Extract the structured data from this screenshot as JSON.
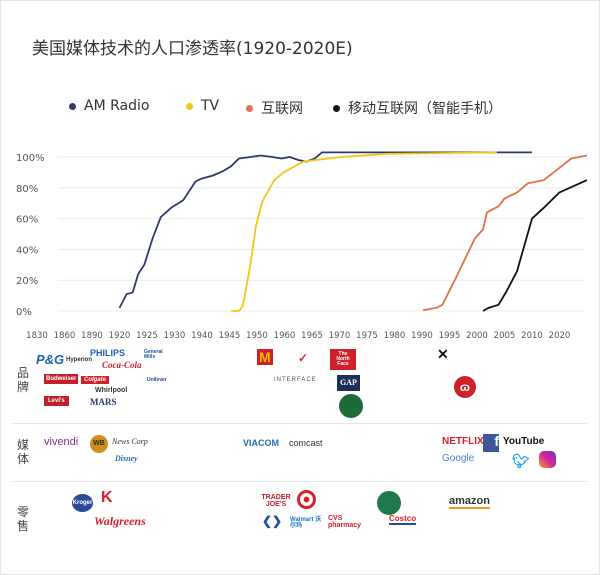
{
  "title": "美国媒体技术的人口渗透率(1920-2020E)",
  "chart_data": {
    "type": "line",
    "title": "美国媒体技术的人口渗透率(1920-2020E)",
    "xlabel": "",
    "ylabel": "",
    "x_ticks": [
      1830,
      1860,
      1890,
      1920,
      1925,
      1930,
      1940,
      1945,
      1950,
      1960,
      1965,
      1970,
      1975,
      1980,
      1990,
      1995,
      2000,
      2005,
      2010,
      2020
    ],
    "y_ticks": [
      "0%",
      "20%",
      "40%",
      "60%",
      "80%",
      "100%"
    ],
    "ylim": [
      0,
      100
    ],
    "grid": "horizontal",
    "legend": "top",
    "series": [
      {
        "name": "AM Radio",
        "color": "#2e3a6e",
        "points": [
          [
            1920,
            2
          ],
          [
            1921.3,
            11
          ],
          [
            1922.4,
            12
          ],
          [
            1923.4,
            24
          ],
          [
            1924.5,
            30
          ],
          [
            1926,
            47
          ],
          [
            1927.5,
            61
          ],
          [
            1929.4,
            67
          ],
          [
            1933.2,
            72
          ],
          [
            1937.6,
            84
          ],
          [
            1939.9,
            86
          ],
          [
            1942,
            88
          ],
          [
            1943.9,
            91
          ],
          [
            1945.3,
            94
          ],
          [
            1946.7,
            99
          ],
          [
            1948.8,
            100
          ],
          [
            1951.3,
            101
          ],
          [
            1955.6,
            100
          ],
          [
            1958.9,
            99
          ],
          [
            1960.9,
            100
          ],
          [
            1962.6,
            98
          ],
          [
            1964,
            97
          ],
          [
            1965.5,
            99
          ],
          [
            1966.8,
            103
          ],
          [
            2010,
            103
          ]
        ]
      },
      {
        "name": "TV",
        "color": "#f2c811",
        "points": [
          [
            1945.3,
            0
          ],
          [
            1946.7,
            0
          ],
          [
            1947.4,
            3
          ],
          [
            1948.8,
            30
          ],
          [
            1949.8,
            55
          ],
          [
            1951.9,
            71
          ],
          [
            1956.3,
            85
          ],
          [
            1959.6,
            90
          ],
          [
            1961.9,
            94
          ],
          [
            1963.4,
            97
          ],
          [
            1965.5,
            98
          ],
          [
            1970.3,
            100
          ],
          [
            1978.5,
            102
          ],
          [
            2003.6,
            103
          ]
        ]
      },
      {
        "name": "互联网",
        "color": "#e0714b",
        "points": [
          [
            1990.2,
            0.5
          ],
          [
            1992.6,
            2
          ],
          [
            1993.7,
            4
          ],
          [
            1996.1,
            21
          ],
          [
            1999.6,
            47
          ],
          [
            2001.1,
            53
          ],
          [
            2001.8,
            64
          ],
          [
            2003.9,
            68
          ],
          [
            2005,
            73
          ],
          [
            2007.3,
            77
          ],
          [
            2009.3,
            83
          ],
          [
            2014.3,
            85
          ],
          [
            2018.6,
            91
          ],
          [
            2024.3,
            99
          ],
          [
            2030,
            101
          ]
        ]
      },
      {
        "name": "移动互联网（智能手机）",
        "color": "#111111",
        "points": [
          [
            2001.1,
            0
          ],
          [
            2002.1,
            2
          ],
          [
            2003.9,
            4
          ],
          [
            2005.4,
            13
          ],
          [
            2007.3,
            26
          ],
          [
            2010,
            60
          ],
          [
            2014.3,
            67
          ],
          [
            2020,
            77
          ],
          [
            2030,
            85
          ]
        ]
      }
    ]
  },
  "sections": [
    {
      "label": "品牌",
      "logos": [
        "P&G",
        "Hyperion",
        "PHILIPS",
        "Coca-Cola",
        "General Mills",
        "Budweiser",
        "Colgate",
        "Whirlpool",
        "Unilever",
        "Levi's",
        "MARS",
        "McDonald's",
        "Nike",
        "The North Face",
        "INTERFACE",
        "GAP",
        "Starbucks",
        "Under Armour",
        "lululemon"
      ]
    },
    {
      "label": "媒体",
      "logos": [
        "vivendi",
        "WB",
        "News Corp",
        "Disney",
        "VIACOM",
        "comcast",
        "NETFLIX",
        "f",
        "YouTube",
        "Google",
        "Twitter",
        "Instagram"
      ]
    },
    {
      "label": "零售",
      "logos": [
        "Kroger",
        "Kmart",
        "Walgreens",
        "TRADER JOE'S",
        "TARGET",
        "Carrefour",
        "Walmart 沃尔玛",
        "CVS pharmacy",
        "Whole Foods",
        "Costco",
        "amazon"
      ]
    }
  ]
}
